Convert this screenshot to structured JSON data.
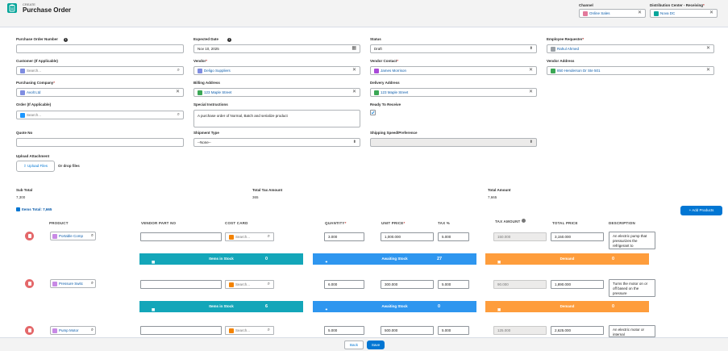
{
  "header": {
    "small": "CREATE",
    "title": "Purchase Order",
    "channel_label": "Channel",
    "channel_value": "Online Sales",
    "dc_label": "Distribution Center - Receiving",
    "dc_value": "Nova DC"
  },
  "form": {
    "po_number_label": "Purchase Order Number",
    "po_number_value": "",
    "expected_date_label": "Expected Date",
    "expected_date_value": "Nov 10, 2025",
    "status_label": "Status",
    "status_value": "Draft",
    "employee_label": "Employee Requester",
    "employee_value": "Rahul Ahmed",
    "customer_label": "Customer (If Applicable)",
    "customer_placeholder": "Search...",
    "vendor_label": "Vendor",
    "vendor_value": "Deligo Suppliers",
    "vendor_contact_label": "Vendor Contact",
    "vendor_contact_value": "James Morrison",
    "vendor_address_label": "Vendor Address",
    "vendor_address_value": "850 Henderson Dr Ste 501",
    "purchasing_company_label": "Purchasing Company",
    "purchasing_company_value": "Avolt Ltd",
    "billing_label": "Billing Address",
    "billing_value": "123 Maple Street",
    "delivery_label": "Delivery Address",
    "delivery_value": "123 Maple Street",
    "order_label": "Order (If Applicable)",
    "order_placeholder": "Search...",
    "special_label": "Special Instructions",
    "special_value": "A purchase order of Normal, Batch and serialize product",
    "ready_label": "Ready To Receive",
    "quote_label": "Quote No",
    "shipment_label": "Shipment Type",
    "shipment_value": "--None--",
    "shipping_speed_label": "Shipping Speed/Preference",
    "upload_label": "Upload Attachment",
    "upload_button": "Upload Files",
    "drop_text": "Or drop files"
  },
  "totals": {
    "sub_label": "Sub Total",
    "sub_value": "7,300",
    "tax_label": "Total Tax Amount",
    "tax_value": "365",
    "total_label": "Total Amount",
    "total_value": "7,665"
  },
  "items": {
    "title": "Items Total: 7,665",
    "add_button": "+ Add Products",
    "columns": [
      "PRODUCT",
      "VENDOR PART NO",
      "COST CARD",
      "QUANTITY",
      "UNIT PRICE",
      "TAX %",
      "TAX AMOUNT",
      "TOTAL PRICE",
      "DESCRIPTION"
    ],
    "search_placeholder": "Search...",
    "stock_label": "Items in Stock",
    "awaiting_label": "Awaiting Stock",
    "demand_label": "Demand",
    "rows": [
      {
        "product": "Portable Comp",
        "qty": "3.000",
        "unit": "1,000.000",
        "tax": "5.000",
        "tax_amt": "150.000",
        "total": "3,150.000",
        "desc": "An electric pump that pressurizes the refrigerant to",
        "stock": "0",
        "awaiting": "27",
        "demand": "0"
      },
      {
        "product": "Pressure Switc",
        "qty": "6.000",
        "unit": "300.000",
        "tax": "5.000",
        "tax_amt": "90.000",
        "total": "1,890.000",
        "desc": "Turns the motor on or off based on the pressure",
        "stock": "6",
        "awaiting": "0",
        "demand": "0"
      },
      {
        "product": "Pump Motor",
        "qty": "5.000",
        "unit": "500.000",
        "tax": "5.000",
        "tax_amt": "125.000",
        "total": "2,625.000",
        "desc": "An electric motor or internal"
      }
    ]
  },
  "footer": {
    "back": "Back",
    "save": "Save"
  },
  "colors": {
    "teal": "#06a59a",
    "blue": "#0176d3",
    "stock_bar": "#13a6b9",
    "awaiting_bar": "#2e96ef",
    "demand_bar": "#fe9d3c"
  }
}
